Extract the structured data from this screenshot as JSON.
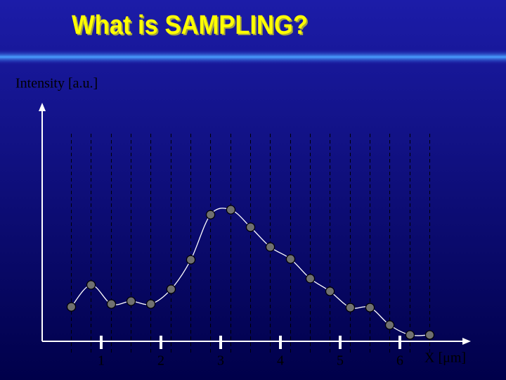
{
  "chart_data": {
    "type": "line",
    "title": "What is SAMPLING?",
    "ylabel": "Intensity [a.u.]",
    "xlabel": "X [μm]",
    "x": [
      0.5,
      0.83,
      1.17,
      1.5,
      1.83,
      2.17,
      2.5,
      2.83,
      3.17,
      3.5,
      3.83,
      4.17,
      4.5,
      4.83,
      5.17,
      5.5,
      5.83,
      6.17,
      6.5
    ],
    "values": [
      1.46,
      2.39,
      1.58,
      1.7,
      1.58,
      2.21,
      3.46,
      5.37,
      5.58,
      4.84,
      4.0,
      3.49,
      2.66,
      2.12,
      1.43,
      1.43,
      0.69,
      0.27,
      0.27
    ],
    "xlim": [
      0,
      7.1
    ],
    "ylim": [
      0,
      10
    ],
    "xticks": [
      1,
      2,
      3,
      4,
      5,
      6
    ],
    "color": "#ffffff",
    "marker_color": "#707070",
    "sample_lines": true
  }
}
